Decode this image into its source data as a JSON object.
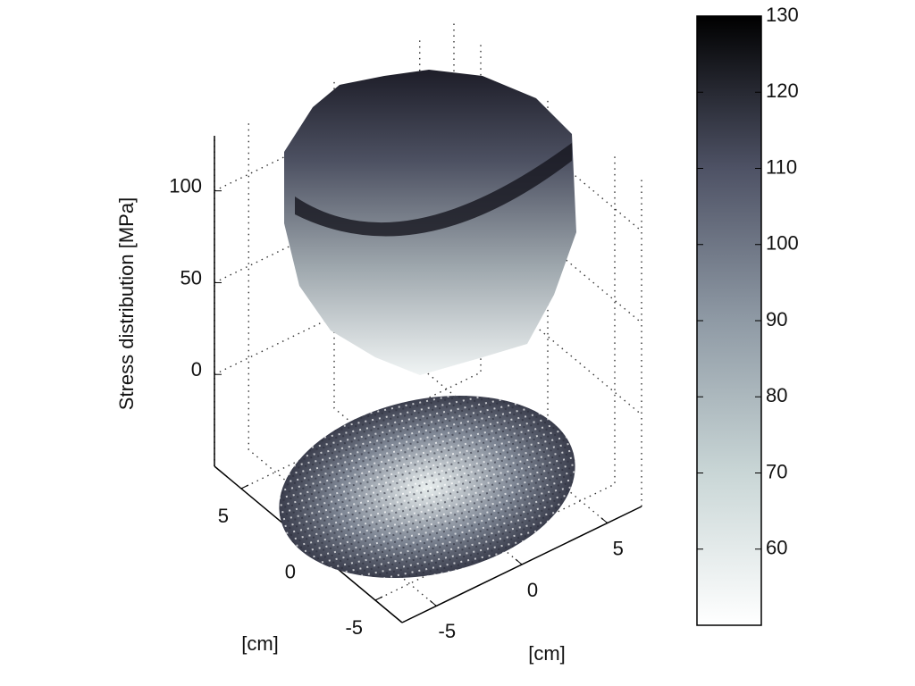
{
  "chart_data": {
    "type": "surface3d",
    "zlabel": "Stress distribution [MPa]",
    "xlabel": "[cm]",
    "ylabel": "[cm]",
    "xlim": [
      -7,
      7
    ],
    "xticks": [
      -5,
      0,
      5
    ],
    "ylim": [
      -7,
      7
    ],
    "yticks": [
      -5,
      0,
      5
    ],
    "zlim": [
      -50,
      130
    ],
    "zticks": [
      0,
      50,
      100
    ],
    "grid": true,
    "colorbar": {
      "clim": [
        50,
        130
      ],
      "ticks": [
        60,
        70,
        80,
        90,
        100,
        110,
        120,
        130
      ],
      "colormap": [
        "#ffffff",
        "#c9d6d6",
        "#8f9aa5",
        "#4e5265",
        "#000000"
      ]
    }
  }
}
